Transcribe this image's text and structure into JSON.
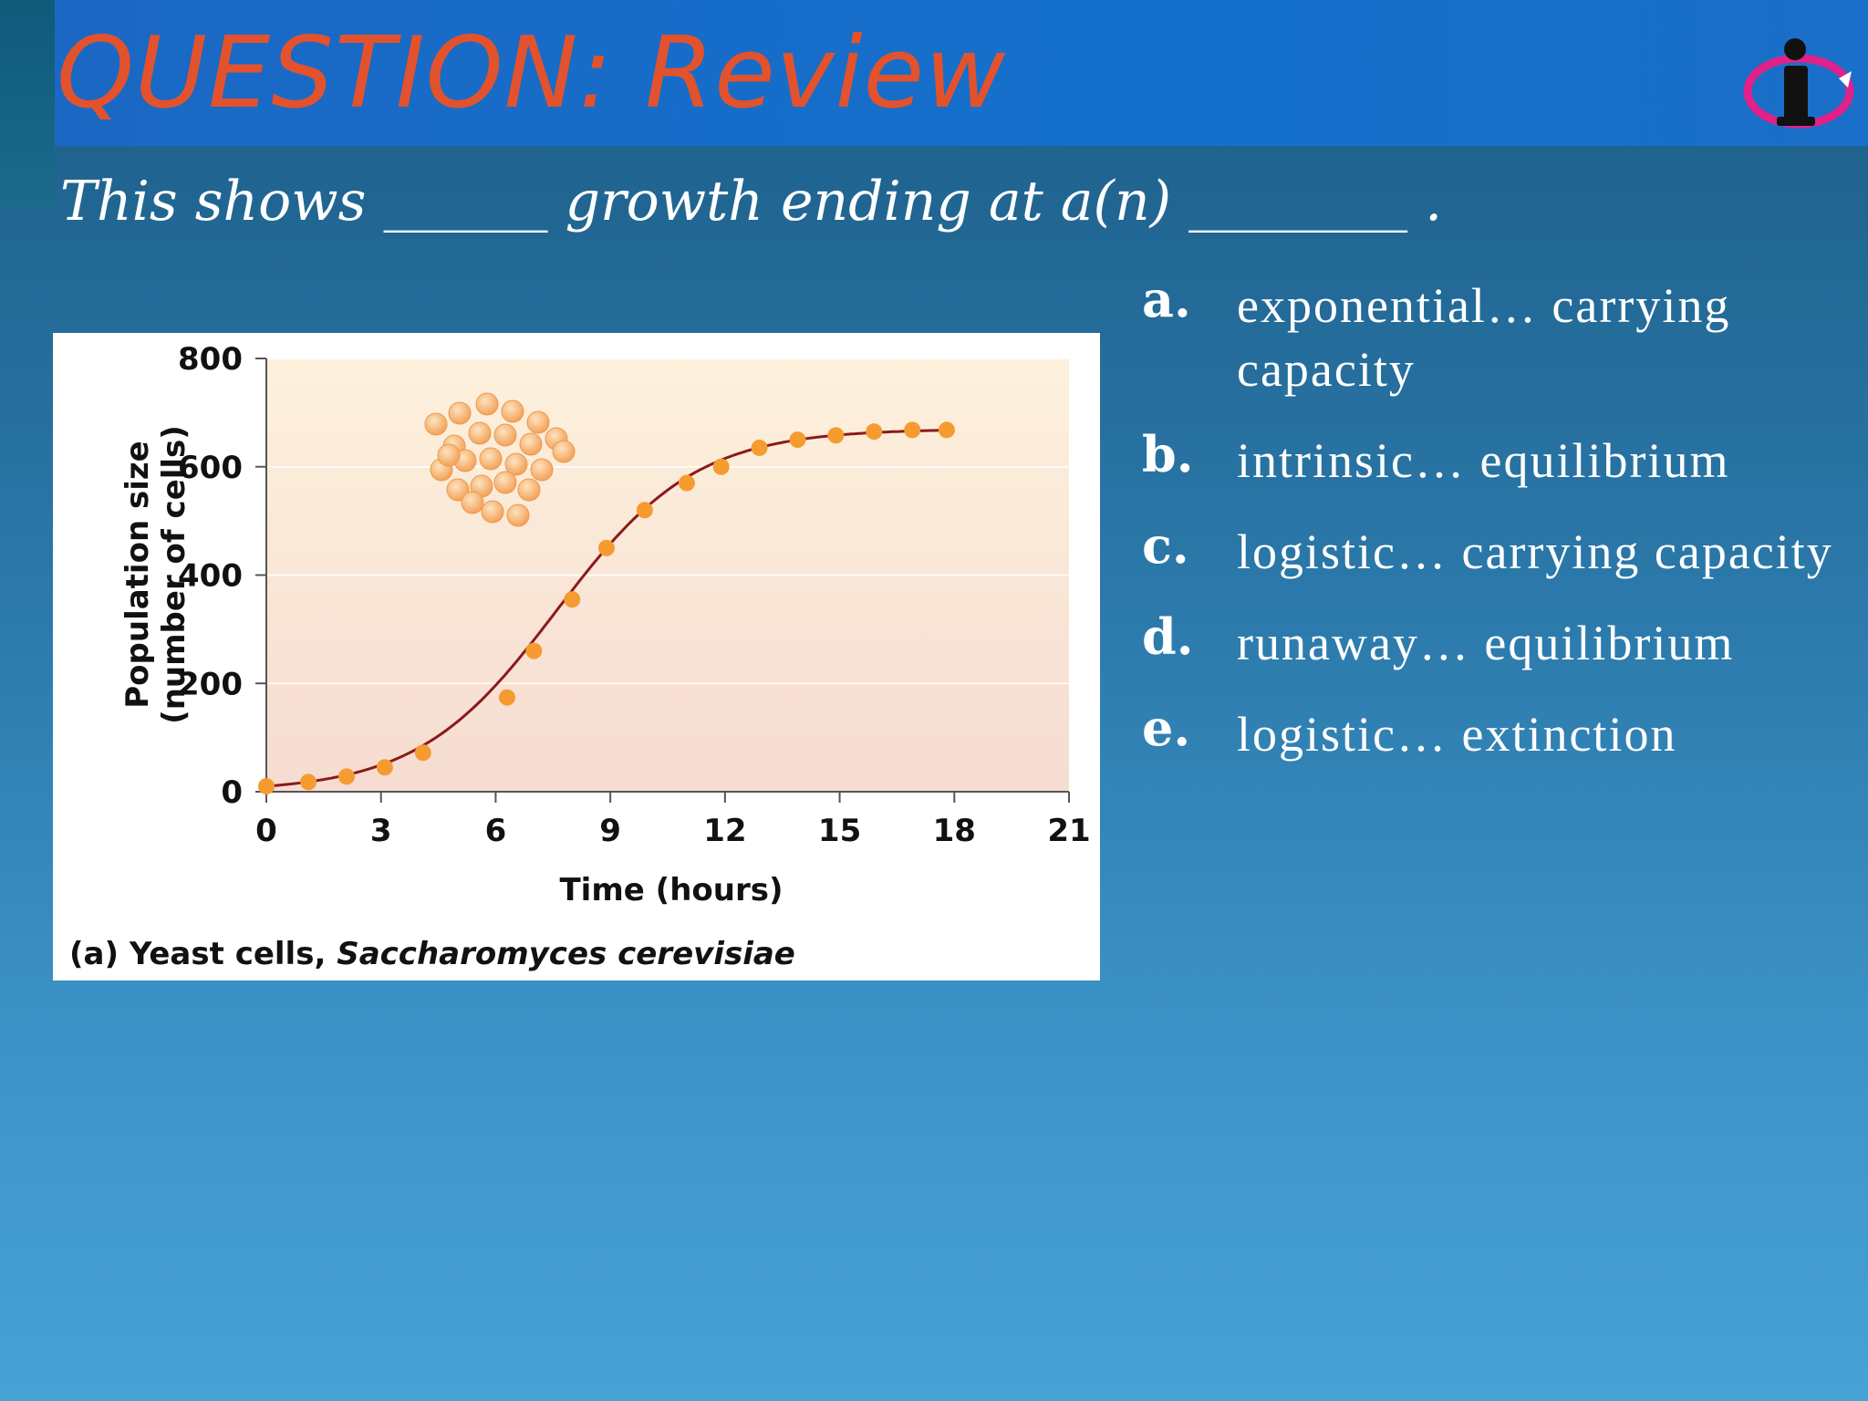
{
  "slide": {
    "title": "QUESTION: Review",
    "question": "This shows ______ growth ending at a(n) ________ .",
    "logo_icon": "info-person-logo-icon"
  },
  "answers": [
    {
      "letter": "a.",
      "text": "exponential… carrying capacity"
    },
    {
      "letter": "b.",
      "text": "intrinsic… equilibrium"
    },
    {
      "letter": "c.",
      "text": "logistic… carrying capacity"
    },
    {
      "letter": "d.",
      "text": "runaway… equilibrium"
    },
    {
      "letter": "e.",
      "text": "logistic… extinction"
    }
  ],
  "chart_data": {
    "type": "scatter",
    "xlabel": "Time (hours)",
    "ylabel": "Population size",
    "ylabel2": "(number of cells)",
    "caption_prefix": "(a) Yeast cells, ",
    "caption_species": "Saccharomyces cerevisiae",
    "xlim": [
      0,
      21
    ],
    "ylim": [
      0,
      800
    ],
    "xticks": [
      0,
      3,
      6,
      9,
      12,
      15,
      18,
      21
    ],
    "yticks": [
      0,
      200,
      400,
      600,
      800
    ],
    "grid": true,
    "series": [
      {
        "x": [
          0,
          1.1,
          2.1,
          3.1,
          4.1,
          6.3,
          7.0,
          8.0,
          8.9,
          9.9,
          11.0,
          11.9,
          12.9,
          13.9,
          14.9,
          15.9,
          16.9,
          17.8
        ],
        "y": [
          10,
          18,
          28,
          45,
          72,
          174,
          260,
          355,
          450,
          520,
          570,
          600,
          635,
          650,
          658,
          665,
          668,
          668
        ]
      }
    ],
    "fit_curve": {
      "type": "logistic",
      "K": 670,
      "r": 0.55,
      "x0": 7.6
    },
    "colors": {
      "points": "#f59b2f",
      "curve": "#8b1a1a",
      "plot_bg_top": "#fdf1dc",
      "plot_bg_bottom": "#f6dcd2"
    }
  }
}
